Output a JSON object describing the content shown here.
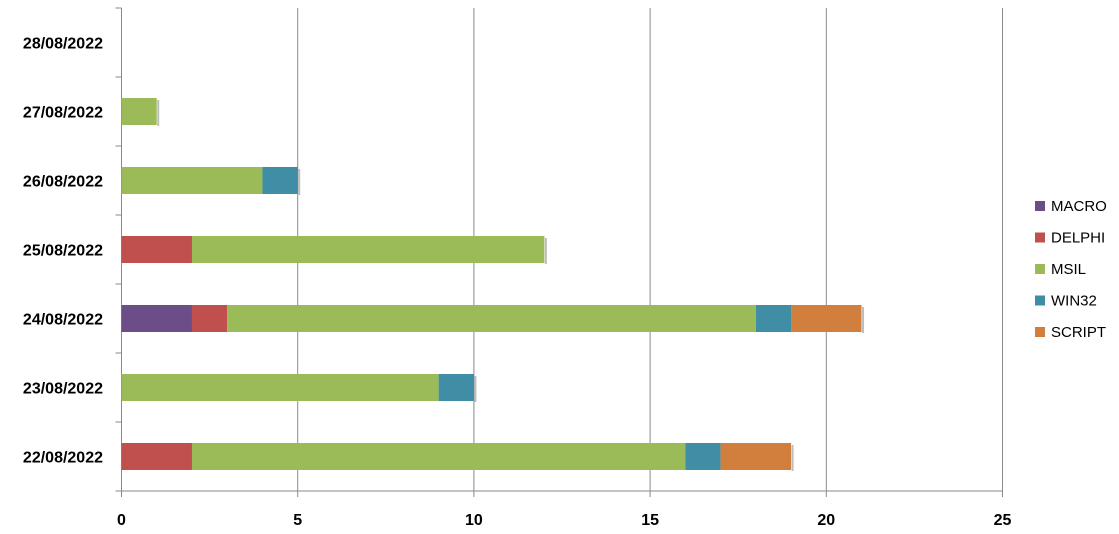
{
  "chart_data": {
    "type": "bar",
    "orientation": "horizontal",
    "stacked": true,
    "categories": [
      "28/08/2022",
      "27/08/2022",
      "26/08/2022",
      "25/08/2022",
      "24/08/2022",
      "23/08/2022",
      "22/08/2022"
    ],
    "series": [
      {
        "name": "MACRO",
        "color": "#6b4e87",
        "values": [
          0,
          0,
          0,
          0,
          2,
          0,
          0
        ]
      },
      {
        "name": "DELPHI",
        "color": "#c0504d",
        "values": [
          0,
          0,
          0,
          2,
          1,
          0,
          2
        ]
      },
      {
        "name": "MSIL",
        "color": "#9bbb59",
        "values": [
          0,
          1,
          4,
          10,
          15,
          9,
          14
        ]
      },
      {
        "name": "WIN32",
        "color": "#3f8ea5",
        "values": [
          0,
          0,
          1,
          0,
          1,
          1,
          1
        ]
      },
      {
        "name": "SCRIPT",
        "color": "#d27e3c",
        "values": [
          0,
          0,
          0,
          0,
          2,
          0,
          2
        ]
      }
    ],
    "xlim": [
      0,
      25
    ],
    "xticks": [
      "0",
      "5",
      "10",
      "15",
      "20",
      "25"
    ],
    "grid": true,
    "legend": "right"
  }
}
